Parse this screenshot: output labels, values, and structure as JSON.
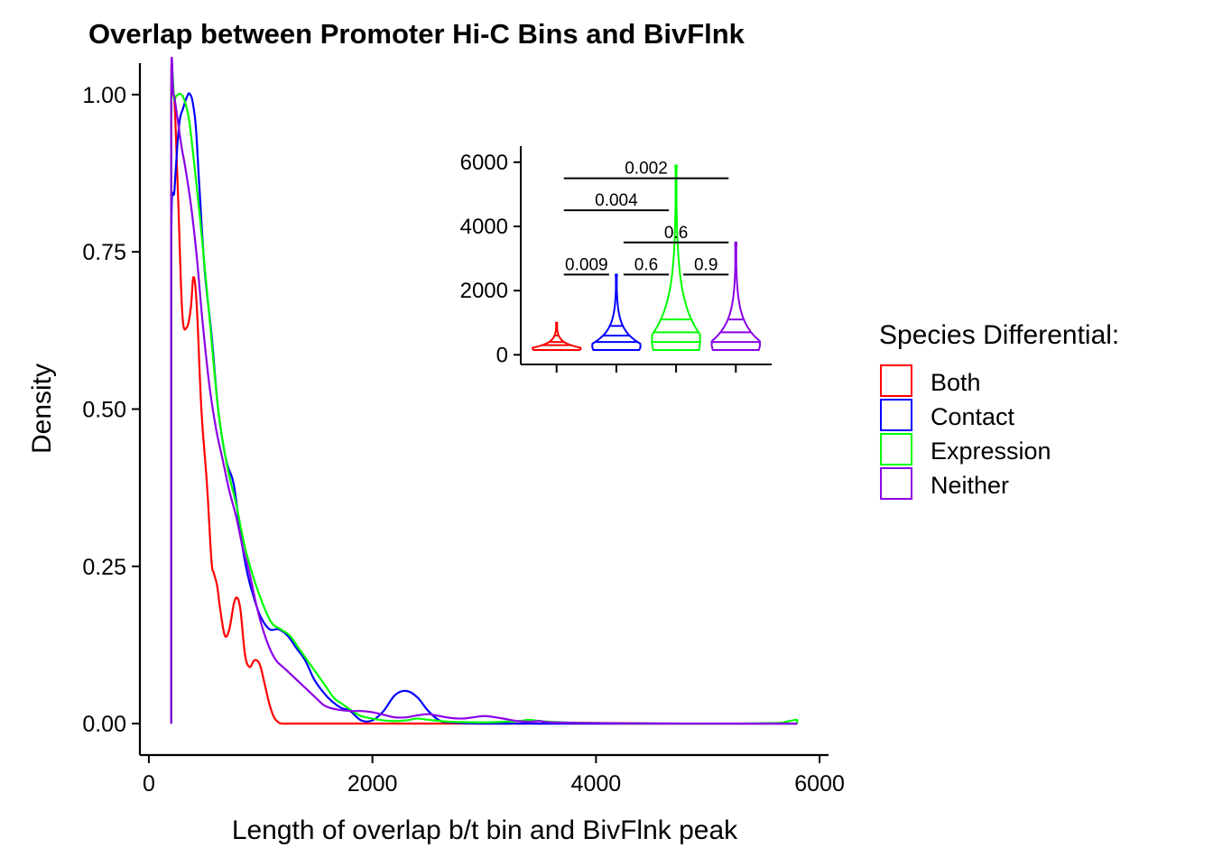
{
  "chart_data": [
    {
      "type": "line",
      "title": "Overlap between Promoter Hi-C Bins and BivFlnk",
      "xlabel": "Length of overlap b/t bin and BivFlnk peak",
      "ylabel": "Density",
      "xlim": [
        -80,
        6080
      ],
      "ylim": [
        -0.05,
        1.05
      ],
      "xticks": [
        0,
        2000,
        4000,
        6000
      ],
      "yticks": [
        0.0,
        0.25,
        0.5,
        0.75,
        1.0
      ],
      "ytick_labels": [
        "0.00",
        "0.25",
        "0.50",
        "0.75",
        "1.00"
      ],
      "grid": false,
      "legend": {
        "title": "Species Differential:",
        "position": "right",
        "entries": [
          "Both",
          "Contact",
          "Expression",
          "Neither"
        ]
      },
      "series": [
        {
          "name": "Both",
          "color": "#ff0000",
          "x": [
            200,
            200,
            215,
            235,
            265,
            300,
            340,
            375,
            400,
            430,
            470,
            520,
            560,
            580,
            610,
            640,
            680,
            720,
            760,
            790,
            820,
            860,
            900,
            940,
            970,
            1000,
            1040,
            1080,
            1120,
            1160,
            1200,
            1300,
            1500,
            2000,
            4000,
            5800,
            5800
          ],
          "y": [
            0,
            0.97,
            1.0,
            0.97,
            0.82,
            0.65,
            0.63,
            0.66,
            0.71,
            0.66,
            0.5,
            0.38,
            0.26,
            0.24,
            0.22,
            0.18,
            0.14,
            0.15,
            0.19,
            0.2,
            0.18,
            0.11,
            0.09,
            0.1,
            0.1,
            0.09,
            0.06,
            0.03,
            0.01,
            0.002,
            0,
            0,
            0,
            0,
            0,
            0,
            0
          ]
        },
        {
          "name": "Contact",
          "color": "#0000ff",
          "x": [
            200,
            200,
            230,
            270,
            310,
            350,
            370,
            390,
            420,
            450,
            500,
            560,
            620,
            690,
            760,
            820,
            880,
            940,
            1000,
            1080,
            1160,
            1240,
            1320,
            1400,
            1480,
            1560,
            1640,
            1720,
            1800,
            1900,
            2000,
            2100,
            2200,
            2300,
            2400,
            2500,
            2600,
            2700,
            3000,
            4000,
            5000,
            5800,
            5800
          ],
          "y": [
            0,
            0.75,
            0.85,
            0.95,
            0.98,
            1.0,
            1.0,
            0.99,
            0.95,
            0.86,
            0.72,
            0.62,
            0.5,
            0.42,
            0.38,
            0.3,
            0.24,
            0.2,
            0.17,
            0.15,
            0.15,
            0.14,
            0.12,
            0.1,
            0.07,
            0.05,
            0.035,
            0.025,
            0.02,
            0.005,
            0.005,
            0.02,
            0.045,
            0.052,
            0.042,
            0.02,
            0.005,
            0.002,
            0,
            0,
            0,
            0,
            0
          ]
        },
        {
          "name": "Expression",
          "color": "#00ff00",
          "x": [
            200,
            200,
            230,
            260,
            290,
            320,
            360,
            400,
            460,
            540,
            620,
            700,
            780,
            860,
            940,
            1020,
            1100,
            1180,
            1260,
            1340,
            1420,
            1500,
            1580,
            1660,
            1740,
            1820,
            1900,
            2000,
            2100,
            2200,
            2300,
            2400,
            2500,
            2700,
            3000,
            3300,
            3400,
            3500,
            3700,
            4000,
            5000,
            5600,
            5700,
            5800,
            5800
          ],
          "y": [
            0,
            0.95,
            0.99,
            1.0,
            1.0,
            0.99,
            0.96,
            0.9,
            0.8,
            0.65,
            0.5,
            0.41,
            0.35,
            0.28,
            0.23,
            0.19,
            0.16,
            0.15,
            0.14,
            0.12,
            0.1,
            0.08,
            0.06,
            0.04,
            0.03,
            0.02,
            0.012,
            0.008,
            0.005,
            0.004,
            0.005,
            0.008,
            0.006,
            0.003,
            0.002,
            0.004,
            0.006,
            0.004,
            0.002,
            0.001,
            0,
            0.001,
            0.003,
            0.006,
            0
          ]
        },
        {
          "name": "Neither",
          "color": "#8b00e6",
          "x": [
            200,
            200,
            220,
            250,
            290,
            330,
            380,
            430,
            480,
            540,
            600,
            660,
            720,
            780,
            840,
            900,
            960,
            1020,
            1080,
            1140,
            1200,
            1260,
            1320,
            1380,
            1440,
            1500,
            1560,
            1620,
            1700,
            1800,
            1900,
            2000,
            2100,
            2200,
            2300,
            2400,
            2500,
            2600,
            2700,
            2800,
            2900,
            3000,
            3100,
            3200,
            3300,
            3400,
            3500,
            3600,
            4000,
            5000,
            5800,
            5800
          ],
          "y": [
            0,
            0.97,
            1.0,
            0.97,
            0.92,
            0.88,
            0.82,
            0.74,
            0.64,
            0.54,
            0.47,
            0.42,
            0.37,
            0.33,
            0.28,
            0.24,
            0.19,
            0.15,
            0.12,
            0.1,
            0.09,
            0.08,
            0.07,
            0.06,
            0.05,
            0.04,
            0.03,
            0.025,
            0.022,
            0.02,
            0.02,
            0.018,
            0.014,
            0.01,
            0.01,
            0.013,
            0.015,
            0.012,
            0.009,
            0.008,
            0.01,
            0.012,
            0.01,
            0.007,
            0.004,
            0.003,
            0.004,
            0.002,
            0.001,
            0,
            0,
            0
          ]
        }
      ]
    },
    {
      "type": "violin",
      "categories": [
        "Both",
        "Contact",
        "Expression",
        "Neither"
      ],
      "ylim": [
        -300,
        6500
      ],
      "yticks": [
        0,
        2000,
        4000,
        6000
      ],
      "xticks_labeled": false,
      "series": [
        {
          "name": "Both",
          "color": "#ff0000",
          "max": 1000,
          "quantiles": [
            300,
            400,
            600
          ]
        },
        {
          "name": "Contact",
          "color": "#0000ff",
          "max": 2500,
          "quantiles": [
            400,
            600,
            900
          ]
        },
        {
          "name": "Expression",
          "color": "#00ff00",
          "max": 5900,
          "quantiles": [
            400,
            700,
            1100
          ]
        },
        {
          "name": "Neither",
          "color": "#8b00e6",
          "max": 3500,
          "quantiles": [
            400,
            700,
            1100
          ]
        }
      ],
      "comparisons": [
        {
          "groups": [
            "Both",
            "Contact"
          ],
          "label": "0.009",
          "y": 2500
        },
        {
          "groups": [
            "Contact",
            "Expression"
          ],
          "label": "0.6",
          "y": 2500
        },
        {
          "groups": [
            "Expression",
            "Neither"
          ],
          "label": "0.9",
          "y": 2500
        },
        {
          "groups": [
            "Contact",
            "Neither"
          ],
          "label": "0.6",
          "y": 3500
        },
        {
          "groups": [
            "Both",
            "Expression"
          ],
          "label": "0.004",
          "y": 4500
        },
        {
          "groups": [
            "Both",
            "Neither"
          ],
          "label": "0.002",
          "y": 5500
        }
      ]
    }
  ]
}
